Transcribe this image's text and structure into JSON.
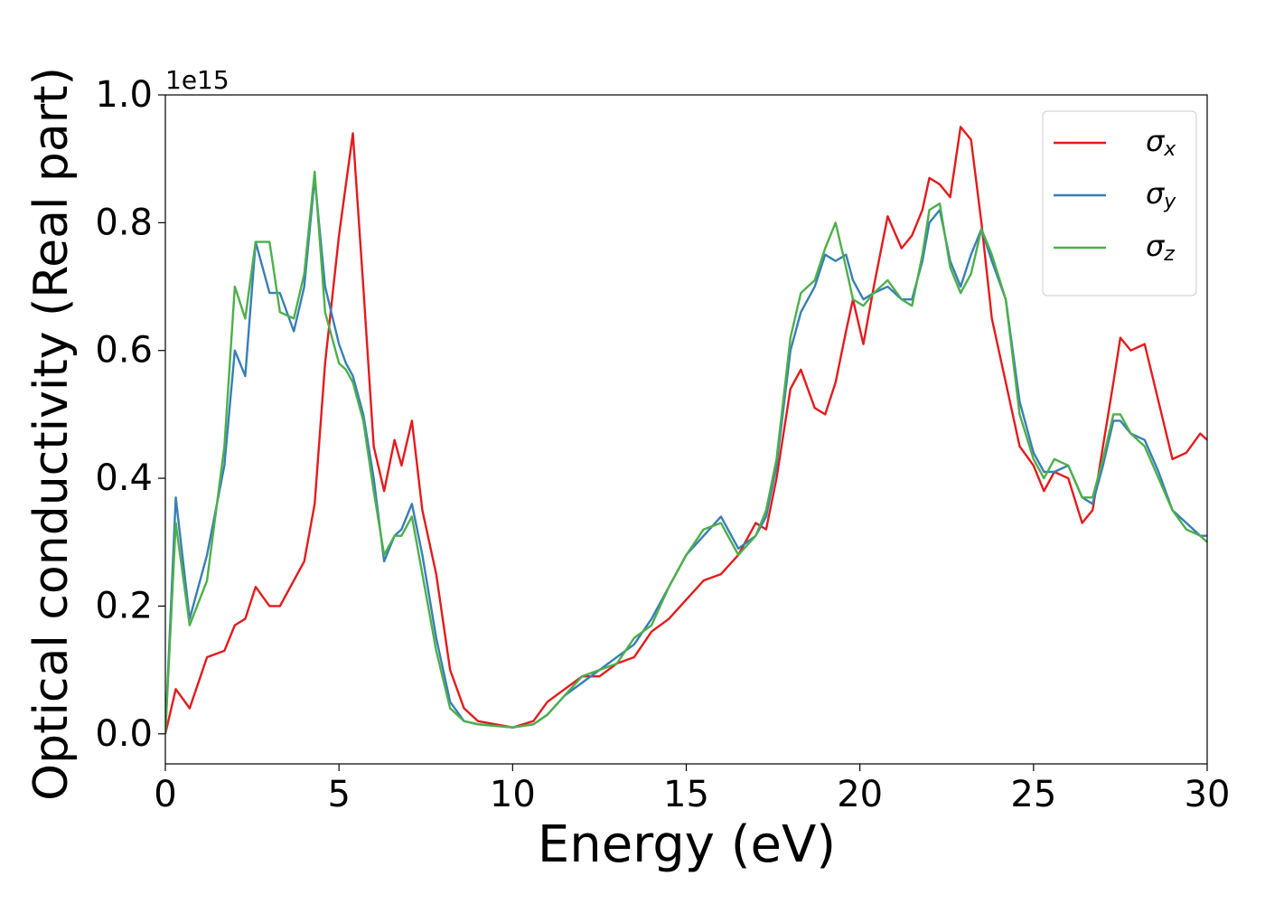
{
  "chart_data": {
    "type": "line",
    "xlabel": "Energy (eV)",
    "ylabel": "Optical conductivity (Real part)",
    "offset_text": "1e15",
    "legend": "upper right",
    "xlim": [
      0,
      30
    ],
    "xticks": [
      0,
      5,
      10,
      15,
      20,
      25,
      30
    ],
    "ylim": [
      -0.047,
      1.0
    ],
    "yticks": [
      {
        "value": 0,
        "label": "0.0"
      },
      {
        "value": 0.2,
        "label": "0.2"
      },
      {
        "value": 0.4,
        "label": "0.4"
      },
      {
        "value": 0.6,
        "label": "0.6"
      },
      {
        "value": 0.8,
        "label": "0.8"
      },
      {
        "value": 1,
        "label": "1.0"
      }
    ],
    "x": [
      0,
      0.3,
      0.7,
      1.2,
      1.7,
      2.0,
      2.3,
      2.6,
      3.0,
      3.3,
      3.7,
      4.0,
      4.3,
      4.6,
      5.0,
      5.2,
      5.4,
      5.7,
      6.0,
      6.3,
      6.6,
      6.8,
      7.1,
      7.4,
      7.8,
      8.2,
      8.6,
      9.0,
      10,
      10.6,
      11,
      11.5,
      12,
      12.5,
      13,
      13.5,
      14,
      14.5,
      15,
      15.5,
      16,
      16.5,
      17,
      17.3,
      17.6,
      18,
      18.3,
      18.7,
      19,
      19.3,
      19.6,
      19.8,
      20.1,
      20.4,
      20.8,
      21.2,
      21.5,
      21.8,
      22.0,
      22.3,
      22.6,
      22.9,
      23.2,
      23.5,
      23.8,
      24.2,
      24.6,
      25,
      25.3,
      25.6,
      26,
      26.4,
      26.7,
      27,
      27.3,
      27.5,
      27.8,
      28.2,
      28.6,
      29,
      29.4,
      29.8,
      30
    ],
    "series": [
      {
        "name": "σx",
        "color": "#e41a1c",
        "values": [
          0.0,
          0.07,
          0.04,
          0.12,
          0.13,
          0.17,
          0.18,
          0.23,
          0.2,
          0.2,
          0.24,
          0.27,
          0.36,
          0.58,
          0.78,
          0.86,
          0.94,
          0.7,
          0.45,
          0.38,
          0.46,
          0.42,
          0.49,
          0.35,
          0.25,
          0.1,
          0.04,
          0.02,
          0.01,
          0.02,
          0.05,
          0.07,
          0.09,
          0.09,
          0.11,
          0.12,
          0.16,
          0.18,
          0.21,
          0.24,
          0.25,
          0.28,
          0.33,
          0.32,
          0.4,
          0.54,
          0.57,
          0.51,
          0.5,
          0.55,
          0.63,
          0.68,
          0.61,
          0.7,
          0.81,
          0.76,
          0.78,
          0.82,
          0.87,
          0.86,
          0.84,
          0.95,
          0.93,
          0.8,
          0.65,
          0.55,
          0.45,
          0.42,
          0.38,
          0.41,
          0.4,
          0.33,
          0.35,
          0.45,
          0.55,
          0.62,
          0.6,
          0.61,
          0.52,
          0.43,
          0.44,
          0.47,
          0.46
        ]
      },
      {
        "name": "σy",
        "color": "#377eb8",
        "values": [
          0.0,
          0.37,
          0.18,
          0.28,
          0.42,
          0.6,
          0.56,
          0.77,
          0.69,
          0.69,
          0.63,
          0.7,
          0.87,
          0.7,
          0.61,
          0.58,
          0.56,
          0.5,
          0.4,
          0.27,
          0.31,
          0.32,
          0.36,
          0.28,
          0.15,
          0.05,
          0.02,
          0.015,
          0.01,
          0.015,
          0.03,
          0.06,
          0.08,
          0.1,
          0.12,
          0.14,
          0.18,
          0.23,
          0.28,
          0.31,
          0.34,
          0.29,
          0.31,
          0.34,
          0.42,
          0.6,
          0.66,
          0.7,
          0.75,
          0.74,
          0.75,
          0.71,
          0.68,
          0.69,
          0.7,
          0.68,
          0.68,
          0.74,
          0.8,
          0.82,
          0.74,
          0.7,
          0.75,
          0.79,
          0.74,
          0.68,
          0.52,
          0.44,
          0.41,
          0.41,
          0.42,
          0.37,
          0.36,
          0.42,
          0.49,
          0.49,
          0.47,
          0.46,
          0.41,
          0.35,
          0.33,
          0.31,
          0.31
        ]
      },
      {
        "name": "σz",
        "color": "#4daf4a",
        "values": [
          0.0,
          0.33,
          0.17,
          0.24,
          0.45,
          0.7,
          0.65,
          0.77,
          0.77,
          0.66,
          0.65,
          0.72,
          0.88,
          0.66,
          0.58,
          0.57,
          0.55,
          0.49,
          0.38,
          0.28,
          0.31,
          0.31,
          0.34,
          0.25,
          0.13,
          0.04,
          0.02,
          0.015,
          0.01,
          0.015,
          0.03,
          0.06,
          0.09,
          0.1,
          0.11,
          0.15,
          0.17,
          0.23,
          0.28,
          0.32,
          0.33,
          0.28,
          0.31,
          0.35,
          0.43,
          0.62,
          0.69,
          0.71,
          0.76,
          0.8,
          0.73,
          0.68,
          0.67,
          0.69,
          0.71,
          0.68,
          0.67,
          0.75,
          0.82,
          0.83,
          0.73,
          0.69,
          0.72,
          0.79,
          0.75,
          0.68,
          0.5,
          0.43,
          0.4,
          0.43,
          0.42,
          0.37,
          0.37,
          0.43,
          0.5,
          0.5,
          0.47,
          0.45,
          0.4,
          0.35,
          0.32,
          0.31,
          0.3
        ]
      }
    ]
  }
}
